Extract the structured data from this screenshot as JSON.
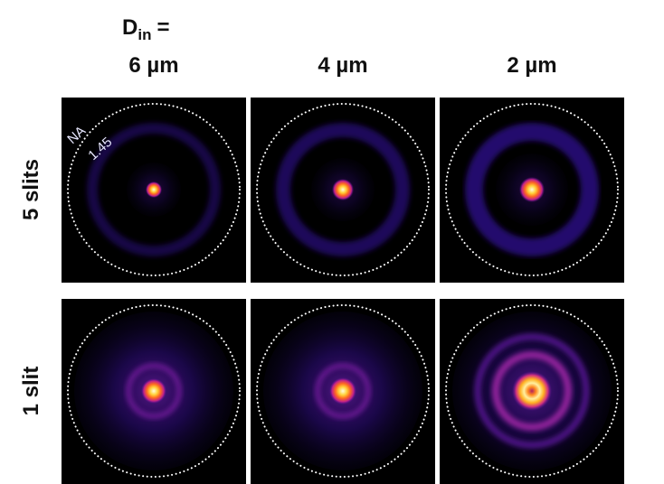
{
  "header": {
    "symbol": "D",
    "subscript": "in",
    "equals": "="
  },
  "columns": [
    "6 µm",
    "4 µm",
    "2 µm"
  ],
  "rows": [
    "5 slits",
    "1 slit"
  ],
  "annotation": {
    "name": "NA",
    "value": "1.45"
  }
}
